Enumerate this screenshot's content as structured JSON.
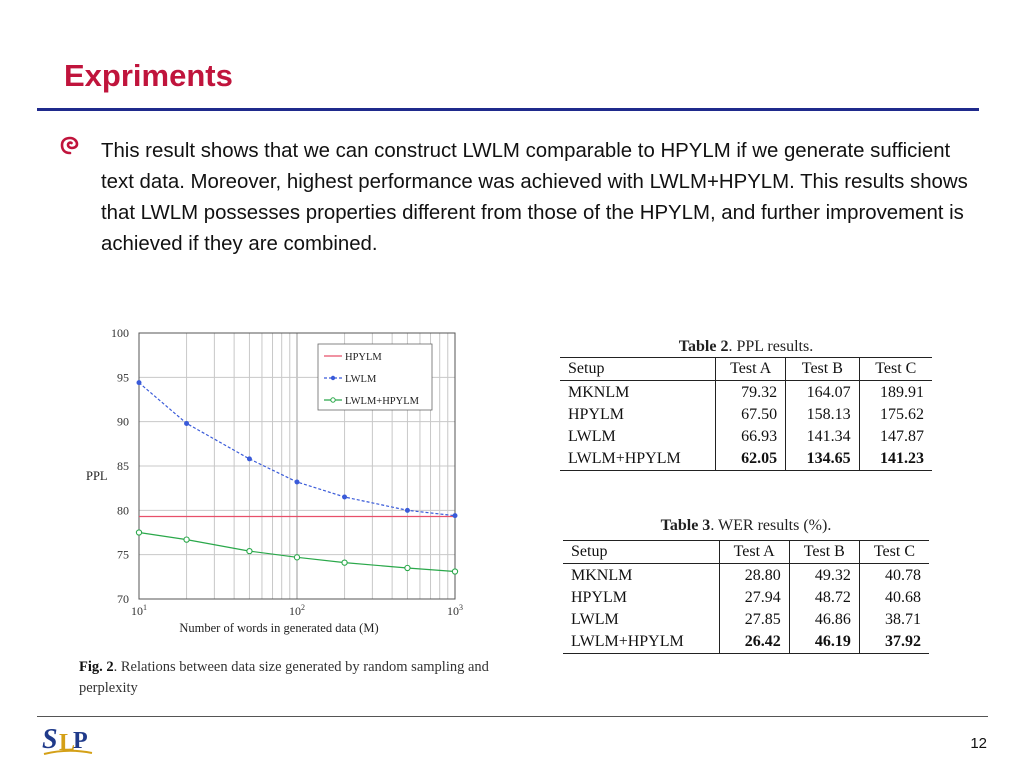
{
  "slide": {
    "title": "Expriments",
    "bullet_text": "This result shows that we can construct LWLM comparable to HPYLM if we generate sufficient text data. Moreover, highest performance was achieved with LWLM+HPYLM. This results shows that LWLM possesses properties different from those of the HPYLM, and further improvement is achieved if they are combined.",
    "page_number": "12",
    "logo_text": "SLP"
  },
  "figure": {
    "caption_label": "Fig. 2",
    "caption_text": ". Relations between data size generated by random sampling and perplexity"
  },
  "chart_data": {
    "type": "line",
    "title": "",
    "xlabel": "Number of words in generated data (M)",
    "ylabel": "PPL",
    "xscale": "log",
    "xlim": [
      10,
      1000
    ],
    "ylim": [
      70,
      100
    ],
    "yticks": [
      70,
      75,
      80,
      85,
      90,
      95,
      100
    ],
    "xticks": [
      {
        "value": 10,
        "label": "10",
        "exp": "1"
      },
      {
        "value": 100,
        "label": "10",
        "exp": "2"
      },
      {
        "value": 1000,
        "label": "10",
        "exp": "3"
      }
    ],
    "grid": true,
    "legend_position": "top-right",
    "series": [
      {
        "name": "HPYLM",
        "color": "#e8506a",
        "marker": "none",
        "style": "solid",
        "x": [
          10,
          1000
        ],
        "y": [
          79.3,
          79.3
        ]
      },
      {
        "name": "LWLM",
        "color": "#3a5bd9",
        "marker": "dot",
        "style": "dashed",
        "x": [
          10,
          20,
          50,
          100,
          200,
          500,
          1000
        ],
        "y": [
          94.4,
          89.8,
          85.8,
          83.2,
          81.5,
          80.0,
          79.4
        ]
      },
      {
        "name": "LWLM+HPYLM",
        "color": "#2aa84a",
        "marker": "circle",
        "style": "solid",
        "x": [
          10,
          20,
          50,
          100,
          200,
          500,
          1000
        ],
        "y": [
          77.5,
          76.7,
          75.4,
          74.7,
          74.1,
          73.5,
          73.1
        ]
      }
    ]
  },
  "table2": {
    "caption_label": "Table 2",
    "caption_text": ". PPL results.",
    "headers": [
      "Setup",
      "Test A",
      "Test B",
      "Test C"
    ],
    "rows": [
      [
        "MKNLM",
        "79.32",
        "164.07",
        "189.91"
      ],
      [
        "HPYLM",
        "67.50",
        "158.13",
        "175.62"
      ],
      [
        "LWLM",
        "66.93",
        "141.34",
        "147.87"
      ],
      [
        "LWLM+HPYLM",
        "62.05",
        "134.65",
        "141.23"
      ]
    ]
  },
  "table3": {
    "caption_label": "Table 3",
    "caption_text": ". WER results (%).",
    "headers": [
      "Setup",
      "Test A",
      "Test B",
      "Test C"
    ],
    "rows": [
      [
        "MKNLM",
        "28.80",
        "49.32",
        "40.78"
      ],
      [
        "HPYLM",
        "27.94",
        "48.72",
        "40.68"
      ],
      [
        "LWLM",
        "27.85",
        "46.86",
        "38.71"
      ],
      [
        "LWLM+HPYLM",
        "26.42",
        "46.19",
        "37.92"
      ]
    ]
  },
  "colors": {
    "title": "#c0143c",
    "rule": "#1f2a8c",
    "bullet": "#c0143c"
  }
}
